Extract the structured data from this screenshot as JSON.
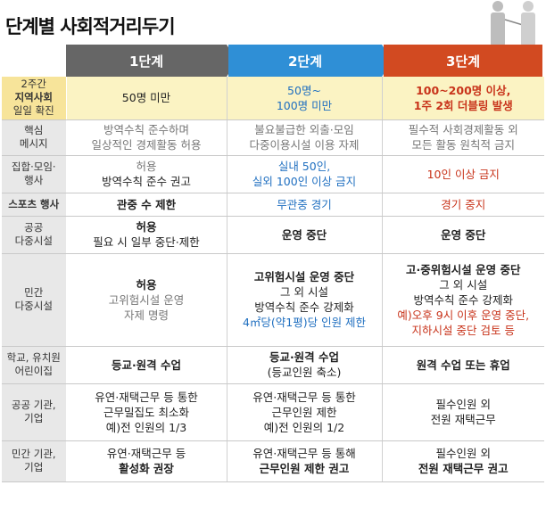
{
  "title": "단계별 사회적거리두기",
  "headers": [
    "1단계",
    "2단계",
    "3단계"
  ],
  "rows": [
    {
      "label": [
        "2주간",
        "지역사회",
        "일일 확진"
      ],
      "c1": [
        "50명 미만"
      ],
      "c2": [
        "50명~",
        "100명 미만"
      ],
      "c3": [
        "100~200명 이상,",
        "1주 2회 더블링 발생"
      ]
    },
    {
      "label": [
        "핵심",
        "메시지"
      ],
      "c1": [
        "방역수칙 준수하며",
        "일상적인 경제활동 허용"
      ],
      "c2": [
        "불요불급한 외출·모임",
        "다중이용시설 이용 자제"
      ],
      "c3": [
        "필수적 사회경제활동 외",
        "모든 활동 원칙적 금지"
      ]
    },
    {
      "label": [
        "집합·모임·",
        "행사"
      ],
      "c1": [
        "허용",
        "방역수칙 준수 권고"
      ],
      "c2": [
        "실내 50인,",
        "실외 100인 이상 금지"
      ],
      "c3": [
        "10인 이상 금지"
      ]
    },
    {
      "label": [
        "스포츠 행사"
      ],
      "c1": [
        "관중 수 제한"
      ],
      "c2": [
        "무관중 경기"
      ],
      "c3": [
        "경기 중지"
      ]
    },
    {
      "label": [
        "공공",
        "다중시설"
      ],
      "c1": [
        "허용",
        "필요 시 일부 중단·제한"
      ],
      "c2": [
        "운영 중단"
      ],
      "c3": [
        "운영 중단"
      ]
    },
    {
      "label": [
        "민간",
        "다중시설"
      ],
      "c1": [
        "허용",
        "고위험시설 운영",
        "자제 명령"
      ],
      "c2": [
        "고위험시설 운영 중단",
        "그 외 시설",
        "방역수칙 준수 강제화",
        "4㎡당(약1평)당 인원 제한"
      ],
      "c3": [
        "고·중위험시설 운영 중단",
        "그 외 시설",
        "방역수칙 준수 강제화",
        "예)오후 9시 이후 운영 중단,",
        "지하시설 중단 검토 등"
      ]
    },
    {
      "label": [
        "학교, 유치원",
        "어린이집"
      ],
      "c1": [
        "등교·원격 수업"
      ],
      "c2": [
        "등교·원격 수업",
        "(등교인원 축소)"
      ],
      "c3": [
        "원격 수업 또는 휴업"
      ]
    },
    {
      "label": [
        "공공 기관,",
        "기업"
      ],
      "c1": [
        "유연·재택근무 등 통한",
        "근무밀집도 최소화",
        "예)전 인원의 1/3"
      ],
      "c2": [
        "유연·재택근무 등 통한",
        "근무인원 제한",
        "예)전 인원의 1/2"
      ],
      "c3": [
        "필수인원 외",
        "전원 재택근무"
      ]
    },
    {
      "label": [
        "민간 기관,",
        "기업"
      ],
      "c1": [
        "유연·재택근무 등",
        "활성화 권장"
      ],
      "c2": [
        "유연·재택근무 등 통해",
        "근무인원 제한 권고"
      ],
      "c3": [
        "필수인원 외",
        "전원 재택근무 권고"
      ]
    }
  ],
  "colors": {
    "stage1": "#666666",
    "stage2": "#2f8fd6",
    "stage3": "#d24a21",
    "highlight_row": "#fbf3c3"
  }
}
